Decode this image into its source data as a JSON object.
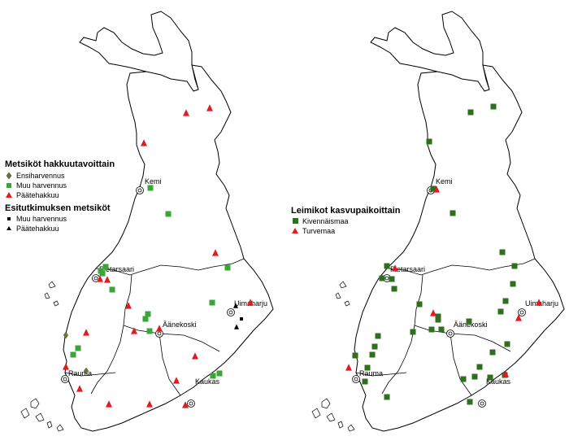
{
  "colors": {
    "harvest_green": "#3aa63a",
    "harvest_red": "#e01b22",
    "ensiharvennus_olive": "#6b7a2a",
    "pilot_black": "#000000",
    "site_dark_green": "#2f6f1f",
    "site_red": "#e01b22",
    "outline": "#000000",
    "land_fill": "#ffffff"
  },
  "cities": [
    "Kemi",
    "Pietarsaari",
    "Äänekoski",
    "Uimaharju",
    "Rauma",
    "Kaukas"
  ],
  "left_map": {
    "legend1": {
      "title": "Metsiköt hakkuutavoittain",
      "items": [
        {
          "label": "Ensiharvennus",
          "symbol": "diamond",
          "color_key": "ensiharvennus_olive"
        },
        {
          "label": "Muu harvennus",
          "symbol": "square",
          "color_key": "harvest_green"
        },
        {
          "label": "Päätehakkuu",
          "symbol": "triangle",
          "color_key": "harvest_red"
        }
      ]
    },
    "legend2": {
      "title": "Esitutkimuksen metsiköt",
      "items": [
        {
          "label": "Muu harvennus",
          "symbol": "square-small",
          "color_key": "pilot_black"
        },
        {
          "label": "Päätehakkuu",
          "symbol": "triangle-small",
          "color_key": "pilot_black"
        }
      ]
    }
  },
  "right_map": {
    "legend": {
      "title": "Leimikot kasvupaikoittain",
      "items": [
        {
          "label": "Kivennäismaa",
          "symbol": "square",
          "color_key": "site_dark_green"
        },
        {
          "label": "Turvemaa",
          "symbol": "triangle",
          "color_key": "site_red"
        }
      ]
    }
  }
}
